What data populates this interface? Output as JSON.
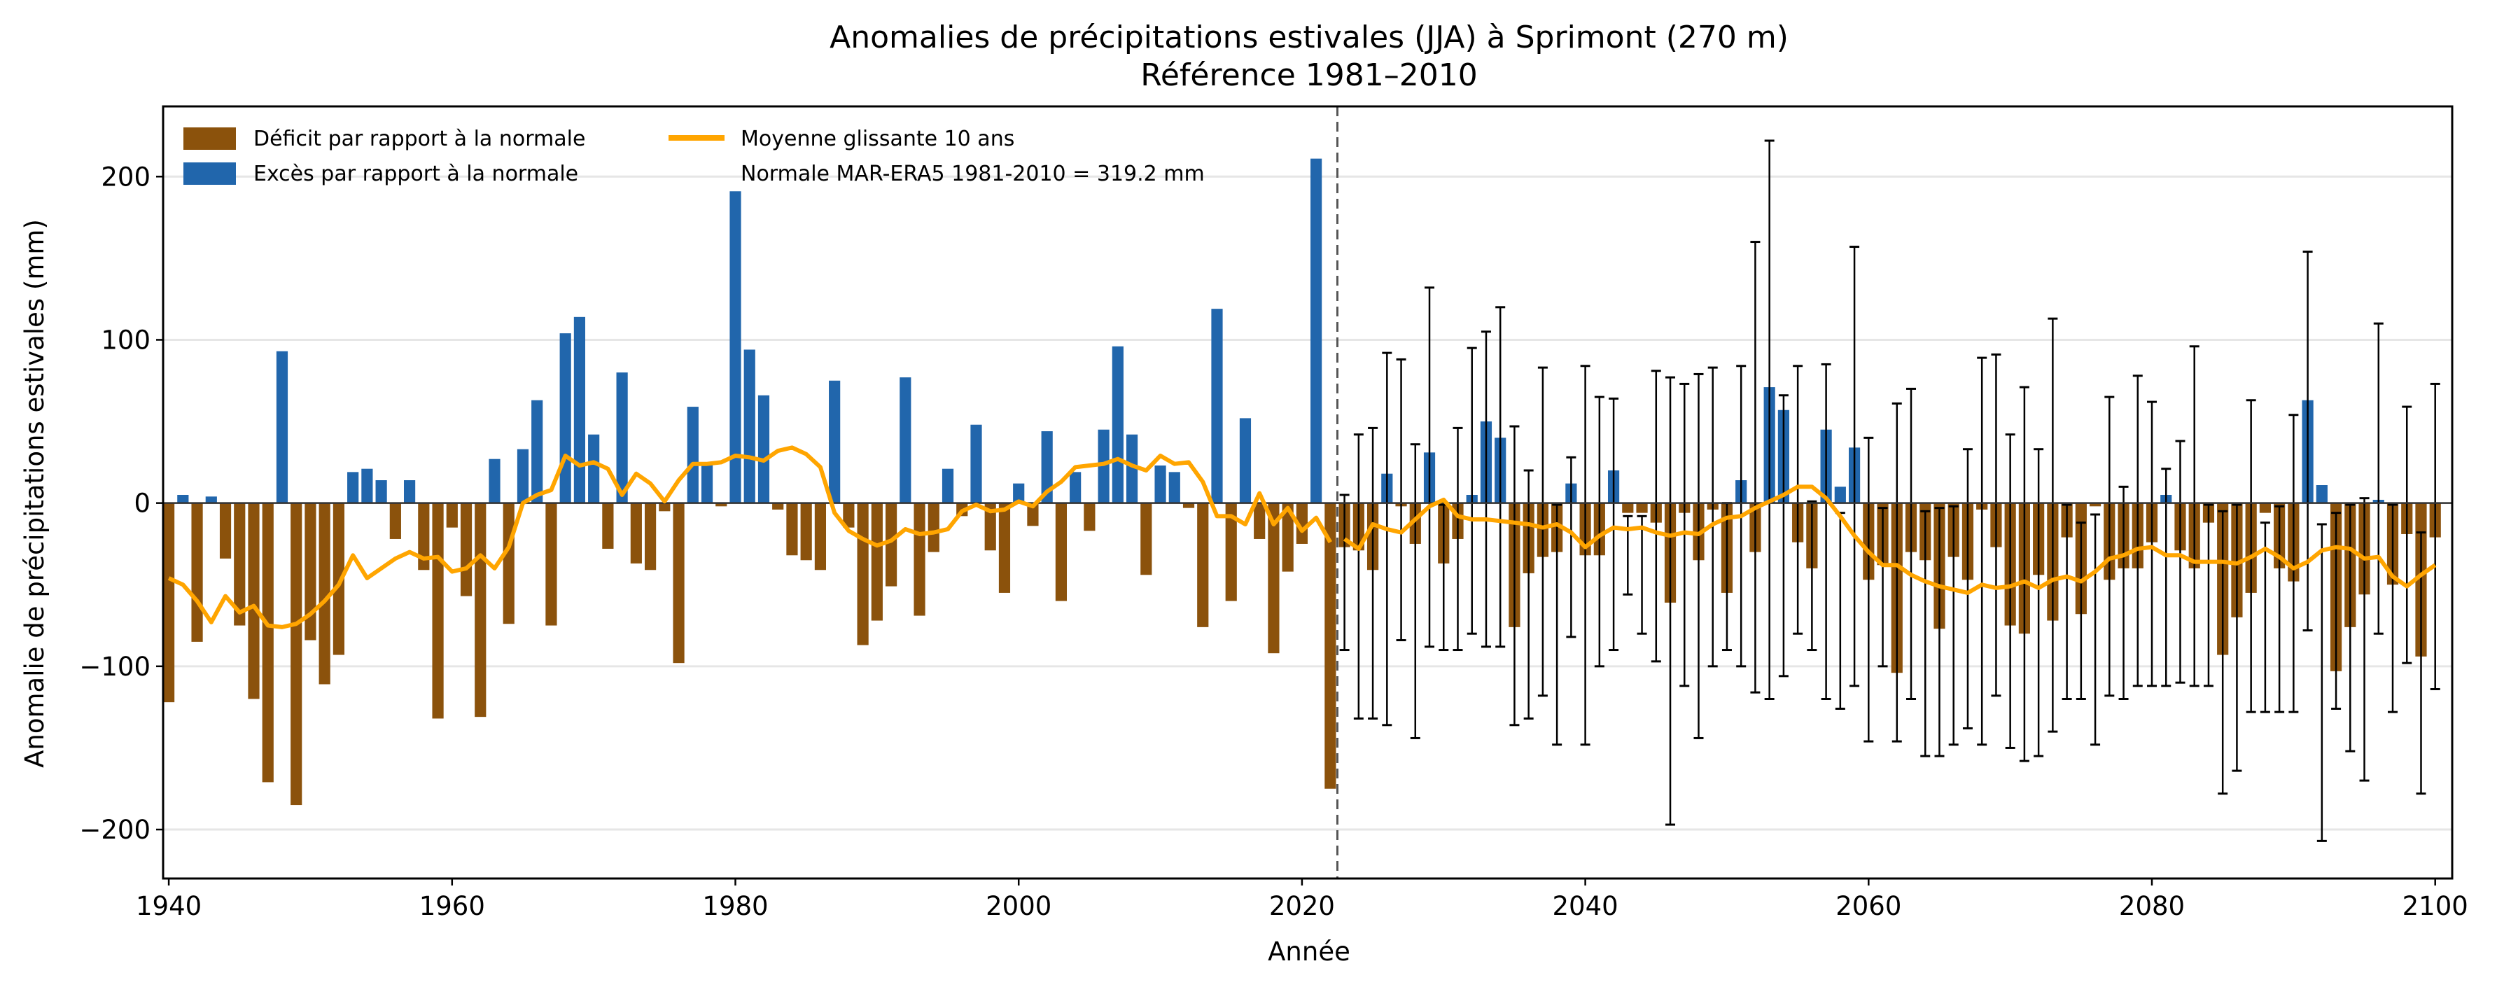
{
  "chart_data": {
    "type": "bar",
    "title": "Anomalies de précipitations estivales (JJA) à Sprimont (270 m)",
    "subtitle": "Référence 1981–2010",
    "xlabel": "Année",
    "ylabel": "Anomalie de précipitations estivales (mm)",
    "xlim": [
      1939.6,
      2101.2
    ],
    "ylim": [
      -230,
      243
    ],
    "xticks": [
      1940,
      1960,
      1980,
      2000,
      2020,
      2040,
      2060,
      2080,
      2100
    ],
    "yticks": [
      -200,
      -100,
      0,
      100,
      200
    ],
    "ytick_labels": [
      "−200",
      "−100",
      "0",
      "100",
      "200"
    ],
    "grid": "horizontal",
    "legend_position": "top-left",
    "legend": [
      {
        "label": "Déficit par rapport à la normale",
        "kind": "patch",
        "color": "#8B520C"
      },
      {
        "label": "Excès par rapport à la normale",
        "kind": "patch",
        "color": "#2166AC"
      },
      {
        "label": "Moyenne glissante 10 ans",
        "kind": "line",
        "color": "#FFA500"
      },
      {
        "label": "Normale MAR-ERA5 1981-2010 = 319.2 mm",
        "kind": "text"
      }
    ],
    "normal_mm": 319.2,
    "split_year": 2022.5,
    "colors": {
      "deficit": "#8B520C",
      "excess": "#2166AC",
      "rolling": "#FFA500",
      "errorbar": "#000000",
      "split_line": "#555555",
      "grid": "#e6e6e6"
    },
    "historical": {
      "years": [
        1940,
        1941,
        1942,
        1943,
        1944,
        1945,
        1946,
        1947,
        1948,
        1949,
        1950,
        1951,
        1952,
        1953,
        1954,
        1955,
        1956,
        1957,
        1958,
        1959,
        1960,
        1961,
        1962,
        1963,
        1964,
        1965,
        1966,
        1967,
        1968,
        1969,
        1970,
        1971,
        1972,
        1973,
        1974,
        1975,
        1976,
        1977,
        1978,
        1979,
        1980,
        1981,
        1982,
        1983,
        1984,
        1985,
        1986,
        1987,
        1988,
        1989,
        1990,
        1991,
        1992,
        1993,
        1994,
        1995,
        1996,
        1997,
        1998,
        1999,
        2000,
        2001,
        2002,
        2003,
        2004,
        2005,
        2006,
        2007,
        2008,
        2009,
        2010,
        2011,
        2012,
        2013,
        2014,
        2015,
        2016,
        2017,
        2018,
        2019,
        2020,
        2021,
        2022
      ],
      "values": [
        -122,
        5,
        -85,
        4,
        -34,
        -75,
        -120,
        -171,
        93,
        -185,
        -84,
        -111,
        -93,
        19,
        21,
        14,
        -22,
        14,
        -41,
        -132,
        -15,
        -57,
        -131,
        27,
        -74,
        33,
        63,
        -75,
        104,
        114,
        42,
        -28,
        80,
        -37,
        -41,
        -5,
        -98,
        59,
        25,
        -2,
        191,
        94,
        66,
        -4,
        -32,
        -35,
        -41,
        75,
        -15,
        -87,
        -72,
        -51,
        77,
        -69,
        -30,
        21,
        -8,
        48,
        -29,
        -55,
        12,
        -14,
        44,
        -60,
        19,
        -17,
        45,
        96,
        42,
        -44,
        23,
        19,
        -3,
        -76,
        119,
        -60,
        52,
        -22,
        -92,
        -42,
        -25,
        211,
        -175
      ]
    },
    "projection": {
      "years": [
        2023,
        2024,
        2025,
        2026,
        2027,
        2028,
        2029,
        2030,
        2031,
        2032,
        2033,
        2034,
        2035,
        2036,
        2037,
        2038,
        2039,
        2040,
        2041,
        2042,
        2043,
        2044,
        2045,
        2046,
        2047,
        2048,
        2049,
        2050,
        2051,
        2052,
        2053,
        2054,
        2055,
        2056,
        2057,
        2058,
        2059,
        2060,
        2061,
        2062,
        2063,
        2064,
        2065,
        2066,
        2067,
        2068,
        2069,
        2070,
        2071,
        2072,
        2073,
        2074,
        2075,
        2076,
        2077,
        2078,
        2079,
        2080,
        2081,
        2082,
        2083,
        2084,
        2085,
        2086,
        2087,
        2088,
        2089,
        2090,
        2091,
        2092,
        2093,
        2094,
        2095,
        2096,
        2097,
        2098,
        2099,
        2100
      ],
      "values": [
        -27,
        -29,
        -41,
        18,
        -2,
        -25,
        31,
        -37,
        -22,
        5,
        50,
        40,
        -76,
        -43,
        -33,
        -30,
        12,
        -32,
        -32,
        20,
        -6,
        -6,
        -12,
        -61,
        -6,
        -35,
        -4,
        -55,
        14,
        -30,
        71,
        57,
        -24,
        -40,
        45,
        10,
        34,
        -47,
        -38,
        -104,
        -30,
        -35,
        -77,
        -33,
        -47,
        -4,
        -27,
        -75,
        -80,
        -44,
        -72,
        -21,
        -68,
        -2,
        -47,
        -40,
        -40,
        -24,
        5,
        -29,
        -40,
        -12,
        -93,
        -70,
        -55,
        -6,
        -40,
        -48,
        63,
        11,
        -103,
        -76,
        -56,
        2,
        -50,
        -19,
        -94,
        -21
      ],
      "err_low": [
        -90,
        -132,
        -132,
        -136,
        -84,
        -144,
        -88,
        -90,
        -90,
        -80,
        -88,
        -88,
        -136,
        -132,
        -118,
        -148,
        -82,
        -148,
        -100,
        -90,
        -56,
        -80,
        -97,
        -197,
        -112,
        -144,
        -100,
        -90,
        -100,
        -116,
        -120,
        -106,
        -80,
        -90,
        -120,
        -126,
        -112,
        -146,
        -100,
        -146,
        -120,
        -155,
        -155,
        -148,
        -138,
        -148,
        -118,
        -150,
        -158,
        -155,
        -140,
        -120,
        -120,
        -148,
        -118,
        -120,
        -112,
        -112,
        -112,
        -110,
        -112,
        -112,
        -178,
        -164,
        -128,
        -128,
        -128,
        -128,
        -78,
        -207,
        -126,
        -152,
        -170,
        -80,
        -128,
        -98,
        -178,
        -114
      ],
      "err_high": [
        5,
        42,
        46,
        92,
        88,
        36,
        132,
        -1,
        46,
        95,
        105,
        120,
        47,
        20,
        83,
        -1,
        28,
        84,
        65,
        64,
        -8,
        -8,
        81,
        77,
        73,
        79,
        83,
        0,
        84,
        160,
        222,
        66,
        84,
        1,
        85,
        -6,
        157,
        40,
        -3,
        61,
        70,
        -5,
        -3,
        -2,
        33,
        89,
        91,
        42,
        71,
        33,
        113,
        -1,
        -12,
        -7,
        65,
        10,
        78,
        62,
        21,
        38,
        96,
        -1,
        -5,
        -1,
        63,
        -12,
        -2,
        54,
        154,
        -13,
        -6,
        -1,
        3,
        110,
        -1,
        59,
        -18,
        73
      ],
      "rolling": [
        -22,
        -28,
        -13,
        -16,
        -18,
        -10,
        -2,
        2,
        -8,
        -10,
        -10,
        -11,
        -12,
        -13,
        -15,
        -13,
        -18,
        -27,
        -20,
        -15,
        -16,
        -15,
        -18,
        -20,
        -18,
        -19,
        -13,
        -9,
        -8,
        -3,
        1,
        5,
        10,
        10,
        3,
        -8,
        -20,
        -30,
        -38,
        -38,
        -44,
        -48,
        -51,
        -53,
        -55,
        -50,
        -52,
        -51,
        -48,
        -52,
        -47,
        -45,
        -48,
        -42,
        -34,
        -32,
        -28,
        -27,
        -32,
        -32,
        -36,
        -36,
        -36,
        -37,
        -33,
        -28,
        -33,
        -40,
        -36,
        -29,
        -27,
        -28,
        -34,
        -33,
        -45,
        -51,
        -44,
        -38
      ]
    },
    "historical_rolling": [
      -46,
      -50,
      -60,
      -73,
      -57,
      -67,
      -63,
      -75,
      -76,
      -74,
      -68,
      -60,
      -50,
      -32,
      -46,
      -40,
      -34,
      -30,
      -34,
      -33,
      -42,
      -40,
      -32,
      -40,
      -27,
      0,
      5,
      8,
      29,
      23,
      25,
      21,
      5,
      18,
      12,
      1,
      14,
      24,
      24,
      25,
      29,
      28,
      26,
      32,
      34,
      30,
      22,
      -6,
      -17,
      -22,
      -26,
      -23,
      -16,
      -19,
      -18,
      -16,
      -5,
      -1,
      -5,
      -4,
      1,
      -2,
      7,
      13,
      22,
      23,
      24,
      27,
      23,
      20,
      29,
      24,
      25,
      13,
      -8,
      -8,
      -13,
      6,
      -13,
      -3,
      -17,
      -9,
      -24
    ]
  }
}
